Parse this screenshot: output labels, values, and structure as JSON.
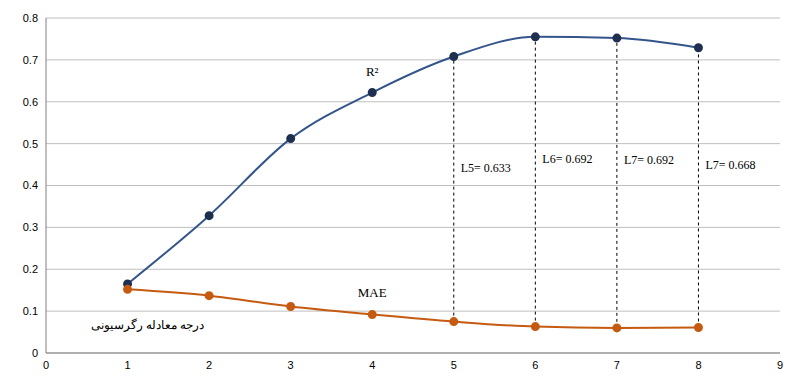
{
  "chart_data": {
    "type": "line",
    "x": [
      1,
      2,
      3,
      4,
      5,
      6,
      7,
      8
    ],
    "series": [
      {
        "name": "R²",
        "color": "#34558b",
        "values": [
          0.165,
          0.328,
          0.512,
          0.622,
          0.708,
          0.755,
          0.752,
          0.729
        ]
      },
      {
        "name": "MAE",
        "color": "#c55a11",
        "values": [
          0.152,
          0.137,
          0.111,
          0.092,
          0.075,
          0.063,
          0.06,
          0.061
        ]
      }
    ],
    "x_label": "درجه معادله رگرسیونی",
    "xlim": [
      0,
      9
    ],
    "xticks": [
      0,
      1,
      2,
      3,
      4,
      5,
      6,
      7,
      8,
      9
    ],
    "ylim": [
      0,
      0.8
    ],
    "yticks": [
      0,
      0.1,
      0.2,
      0.3,
      0.4,
      0.5,
      0.6,
      0.7,
      0.8
    ],
    "grid": true,
    "marker": "circle",
    "line_style": "smooth",
    "annotations": [
      {
        "x": 5,
        "text": "L5= 0.633"
      },
      {
        "x": 6,
        "text": "L6= 0.692"
      },
      {
        "x": 7,
        "text": "L7= 0.692"
      },
      {
        "x": 8,
        "text": "L7= 0.668"
      }
    ]
  }
}
